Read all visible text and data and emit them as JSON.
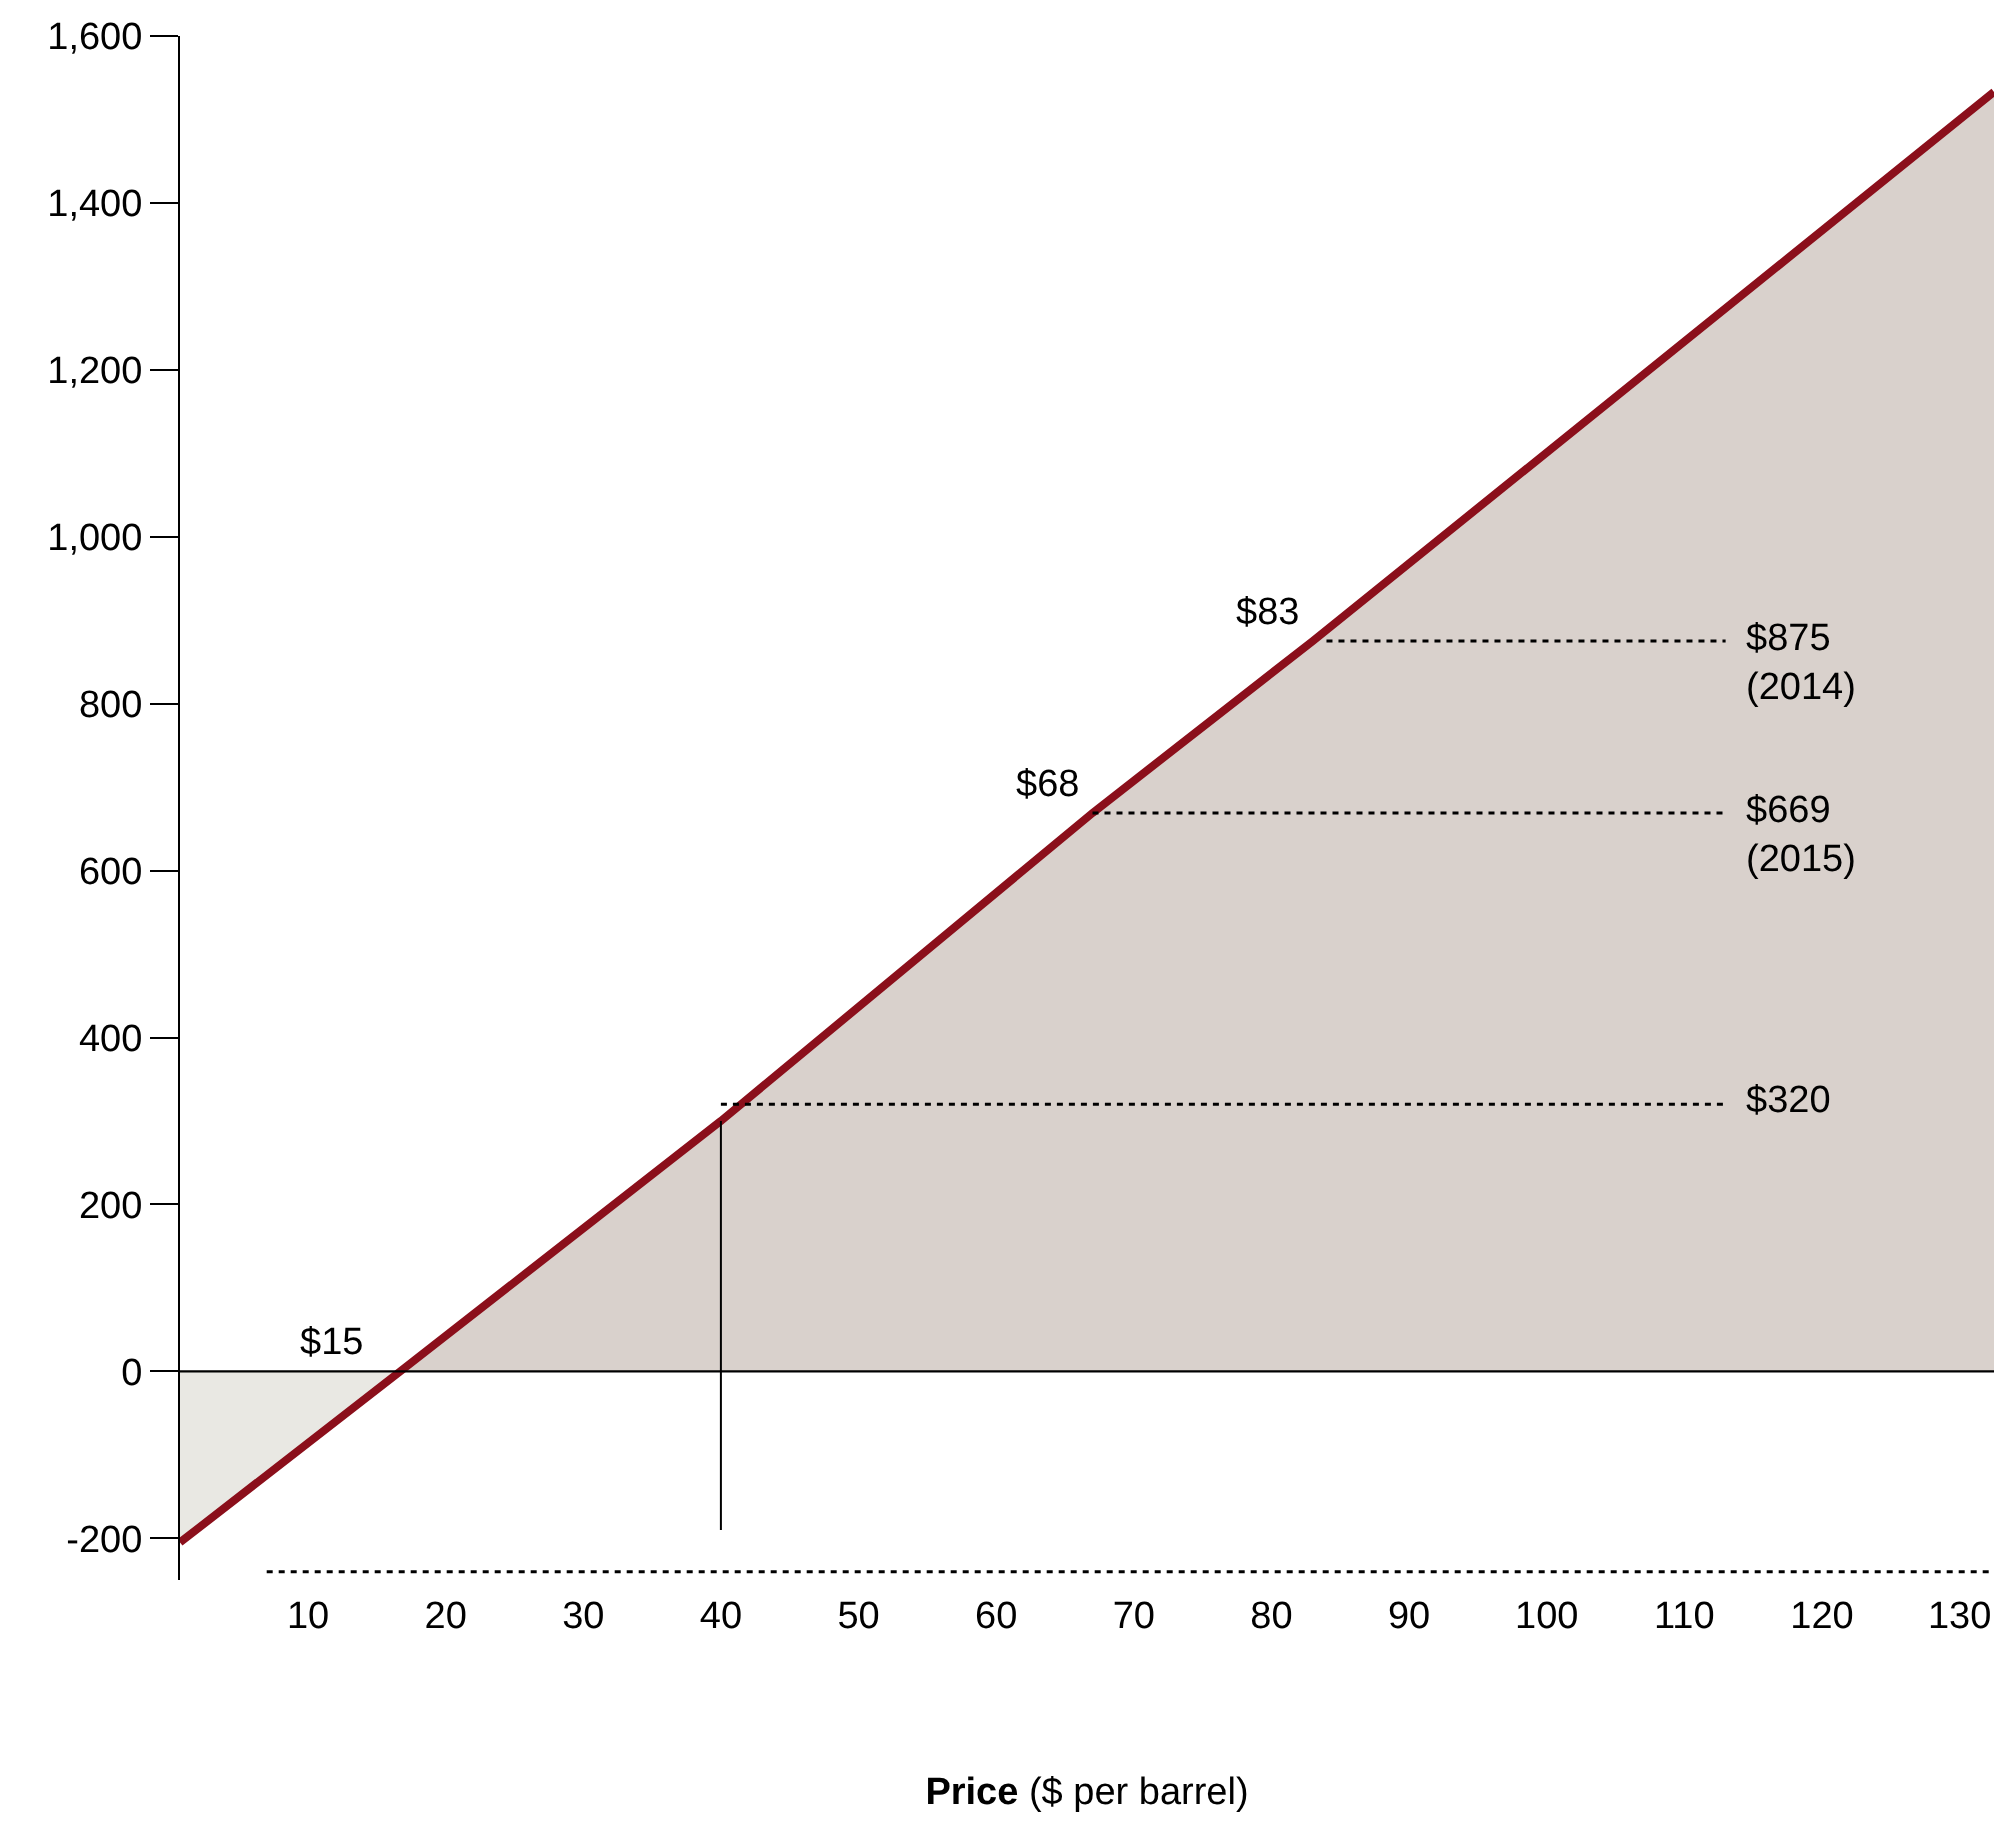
{
  "chart_data": {
    "type": "line",
    "xlabel": "Price ($ per barrel)",
    "xlim": [
      0.7,
      132.5
    ],
    "ylim": [
      -250,
      1600
    ],
    "xticks": [
      10,
      20,
      30,
      40,
      50,
      60,
      70,
      80,
      90,
      100,
      110,
      120,
      130
    ],
    "yticks": [
      {
        "value": -200,
        "label": "-200"
      },
      0,
      200,
      400,
      600,
      800,
      {
        "value": 1000,
        "label": "1,000"
      },
      {
        "value": 1200,
        "label": "1,200"
      },
      {
        "value": 1400,
        "label": "1,400"
      },
      {
        "value": 1600,
        "label": "1,600"
      }
    ],
    "grid": false,
    "series": [
      {
        "type": "area",
        "color": "#e9e8e3",
        "x": [
          0.7,
          16.7
        ],
        "values": [
          -205,
          0
        ]
      },
      {
        "type": "area",
        "color": "#d9d1cc",
        "x": [
          16.7,
          40,
          67,
          83,
          132.5
        ],
        "values": [
          0,
          300,
          669,
          875,
          1533
        ]
      },
      {
        "color": "#8b0f1b",
        "x": [
          0.7,
          16.7,
          40,
          67,
          83,
          132.5
        ],
        "values": [
          -205,
          0,
          300,
          669,
          875,
          1533
        ]
      },
      {
        "color": "#000000",
        "x": [
          40,
          40
        ],
        "values": [
          300,
          -190
        ]
      },
      {
        "color": "#000000",
        "line_style": "dotted",
        "x": [
          84,
          113
        ],
        "values": [
          875,
          875
        ]
      },
      {
        "color": "#000000",
        "line_style": "dotted",
        "x": [
          67,
          113
        ],
        "values": [
          669,
          669
        ]
      },
      {
        "color": "#000000",
        "line_style": "dotted",
        "x": [
          40,
          113
        ],
        "values": [
          320,
          320
        ]
      },
      {
        "color": "#000000",
        "line_style": "dotted",
        "x": [
          7,
          132.5
        ],
        "values": [
          -240,
          -240
        ]
      }
    ],
    "ref_lines": [
      {
        "axis": "y",
        "value": 0,
        "color": "#000000"
      }
    ],
    "annotations": [
      {
        "text": "$15",
        "x": 15,
        "y": 0
      },
      {
        "text": "$68",
        "x": 67,
        "y": 669
      },
      {
        "text": "$83",
        "x": 83,
        "y": 875
      },
      {
        "text": "$875\n(2014)",
        "x": 113,
        "y": 875
      },
      {
        "text": "$669\n(2015)",
        "x": 113,
        "y": 669
      },
      {
        "text": "$320",
        "x": 113,
        "y": 320
      }
    ]
  }
}
